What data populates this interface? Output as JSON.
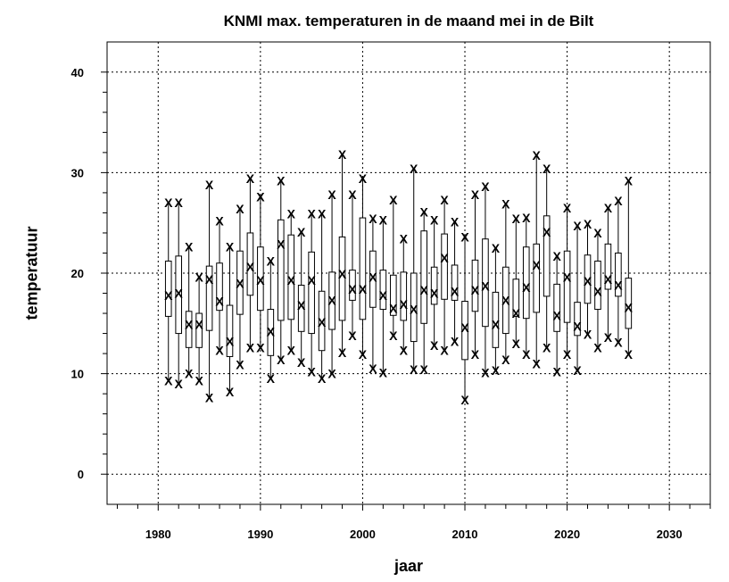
{
  "chart_data": {
    "type": "box",
    "title": "KNMI max. temperaturen in de maand mei in de Bilt",
    "xlabel": "jaar",
    "ylabel": "temperatuur",
    "xlim": [
      1975,
      2034
    ],
    "ylim": [
      -3,
      43
    ],
    "xticks": [
      1980,
      1990,
      2000,
      2010,
      2020,
      2030
    ],
    "yticks": [
      0,
      10,
      20,
      30,
      40
    ],
    "grid": true,
    "marker": "X",
    "marker_meaning": [
      "min",
      "median",
      "max"
    ],
    "boxes": [
      {
        "year": 1981,
        "min": 9.3,
        "q1": 15.7,
        "med": 17.8,
        "q3": 21.2,
        "max": 27.0
      },
      {
        "year": 1982,
        "min": 9.0,
        "q1": 14.0,
        "med": 18.0,
        "q3": 21.7,
        "max": 27.0
      },
      {
        "year": 1983,
        "min": 10.0,
        "q1": 12.6,
        "med": 14.9,
        "q3": 16.2,
        "max": 22.6
      },
      {
        "year": 1984,
        "min": 9.3,
        "q1": 12.6,
        "med": 14.9,
        "q3": 16.0,
        "max": 19.6
      },
      {
        "year": 1985,
        "min": 7.6,
        "q1": 14.3,
        "med": 19.4,
        "q3": 20.7,
        "max": 28.8
      },
      {
        "year": 1986,
        "min": 12.3,
        "q1": 16.3,
        "med": 17.2,
        "q3": 21.0,
        "max": 25.2
      },
      {
        "year": 1987,
        "min": 8.2,
        "q1": 11.7,
        "med": 13.2,
        "q3": 16.8,
        "max": 22.6
      },
      {
        "year": 1988,
        "min": 10.9,
        "q1": 15.9,
        "med": 19.0,
        "q3": 22.2,
        "max": 26.4
      },
      {
        "year": 1989,
        "min": 12.6,
        "q1": 17.8,
        "med": 20.6,
        "q3": 24.0,
        "max": 29.4
      },
      {
        "year": 1990,
        "min": 12.6,
        "q1": 16.3,
        "med": 19.3,
        "q3": 22.6,
        "max": 27.6
      },
      {
        "year": 1991,
        "min": 9.5,
        "q1": 11.8,
        "med": 14.2,
        "q3": 16.4,
        "max": 21.2
      },
      {
        "year": 1992,
        "min": 11.4,
        "q1": 15.3,
        "med": 22.9,
        "q3": 25.3,
        "max": 29.2
      },
      {
        "year": 1993,
        "min": 12.3,
        "q1": 15.4,
        "med": 19.3,
        "q3": 23.8,
        "max": 25.9
      },
      {
        "year": 1994,
        "min": 11.1,
        "q1": 14.2,
        "med": 16.8,
        "q3": 18.8,
        "max": 24.1
      },
      {
        "year": 1995,
        "min": 10.2,
        "q1": 14.0,
        "med": 19.3,
        "q3": 22.1,
        "max": 25.9
      },
      {
        "year": 1996,
        "min": 9.5,
        "q1": 12.3,
        "med": 15.1,
        "q3": 18.2,
        "max": 25.9
      },
      {
        "year": 1997,
        "min": 10.0,
        "q1": 14.4,
        "med": 17.3,
        "q3": 20.1,
        "max": 27.8
      },
      {
        "year": 1998,
        "min": 12.1,
        "q1": 15.3,
        "med": 19.9,
        "q3": 23.6,
        "max": 31.8
      },
      {
        "year": 1999,
        "min": 13.8,
        "q1": 17.3,
        "med": 18.4,
        "q3": 20.3,
        "max": 27.8
      },
      {
        "year": 2000,
        "min": 11.9,
        "q1": 15.4,
        "med": 18.4,
        "q3": 25.5,
        "max": 29.4
      },
      {
        "year": 2001,
        "min": 10.5,
        "q1": 16.6,
        "med": 19.6,
        "q3": 22.2,
        "max": 25.4
      },
      {
        "year": 2002,
        "min": 10.1,
        "q1": 16.4,
        "med": 17.8,
        "q3": 20.3,
        "max": 25.3
      },
      {
        "year": 2003,
        "min": 13.8,
        "q1": 15.8,
        "med": 16.5,
        "q3": 19.8,
        "max": 27.3
      },
      {
        "year": 2004,
        "min": 12.3,
        "q1": 15.3,
        "med": 16.9,
        "q3": 20.1,
        "max": 23.4
      },
      {
        "year": 2005,
        "min": 10.4,
        "q1": 13.2,
        "med": 16.4,
        "q3": 20.0,
        "max": 30.4
      },
      {
        "year": 2006,
        "min": 10.4,
        "q1": 15.0,
        "med": 18.3,
        "q3": 24.2,
        "max": 26.1
      },
      {
        "year": 2007,
        "min": 12.8,
        "q1": 16.9,
        "med": 18.0,
        "q3": 20.6,
        "max": 25.3
      },
      {
        "year": 2008,
        "min": 12.3,
        "q1": 17.4,
        "med": 21.5,
        "q3": 23.9,
        "max": 27.3
      },
      {
        "year": 2009,
        "min": 13.2,
        "q1": 17.3,
        "med": 18.2,
        "q3": 20.8,
        "max": 25.1
      },
      {
        "year": 2010,
        "min": 7.4,
        "q1": 11.4,
        "med": 14.6,
        "q3": 17.2,
        "max": 23.6
      },
      {
        "year": 2011,
        "min": 11.9,
        "q1": 16.2,
        "med": 18.3,
        "q3": 21.3,
        "max": 27.8
      },
      {
        "year": 2012,
        "min": 10.1,
        "q1": 14.7,
        "med": 18.7,
        "q3": 23.4,
        "max": 28.6
      },
      {
        "year": 2013,
        "min": 10.3,
        "q1": 12.6,
        "med": 14.9,
        "q3": 18.1,
        "max": 22.5
      },
      {
        "year": 2014,
        "min": 11.4,
        "q1": 14.0,
        "med": 17.3,
        "q3": 20.6,
        "max": 26.9
      },
      {
        "year": 2015,
        "min": 13.0,
        "q1": 15.7,
        "med": 16.0,
        "q3": 19.4,
        "max": 25.4
      },
      {
        "year": 2016,
        "min": 11.9,
        "q1": 15.5,
        "med": 18.6,
        "q3": 22.6,
        "max": 25.5
      },
      {
        "year": 2017,
        "min": 11.0,
        "q1": 16.1,
        "med": 20.8,
        "q3": 22.9,
        "max": 31.7
      },
      {
        "year": 2018,
        "min": 12.6,
        "q1": 17.7,
        "med": 24.1,
        "q3": 25.7,
        "max": 30.4
      },
      {
        "year": 2019,
        "min": 10.2,
        "q1": 14.2,
        "med": 15.8,
        "q3": 18.9,
        "max": 21.7
      },
      {
        "year": 2020,
        "min": 11.9,
        "q1": 15.1,
        "med": 19.6,
        "q3": 22.2,
        "max": 26.5
      },
      {
        "year": 2021,
        "min": 10.3,
        "q1": 13.8,
        "med": 14.7,
        "q3": 17.1,
        "max": 24.7
      },
      {
        "year": 2022,
        "min": 13.9,
        "q1": 17.0,
        "med": 19.2,
        "q3": 21.8,
        "max": 24.9
      },
      {
        "year": 2023,
        "min": 12.6,
        "q1": 16.4,
        "med": 18.2,
        "q3": 21.2,
        "max": 24.0
      },
      {
        "year": 2024,
        "min": 13.6,
        "q1": 18.4,
        "med": 19.4,
        "q3": 22.9,
        "max": 26.5
      },
      {
        "year": 2025,
        "min": 13.1,
        "q1": 17.7,
        "med": 18.8,
        "q3": 22.0,
        "max": 27.2
      },
      {
        "year": 2026,
        "min": 11.9,
        "q1": 14.5,
        "med": 16.6,
        "q3": 19.5,
        "max": 29.2
      }
    ]
  }
}
